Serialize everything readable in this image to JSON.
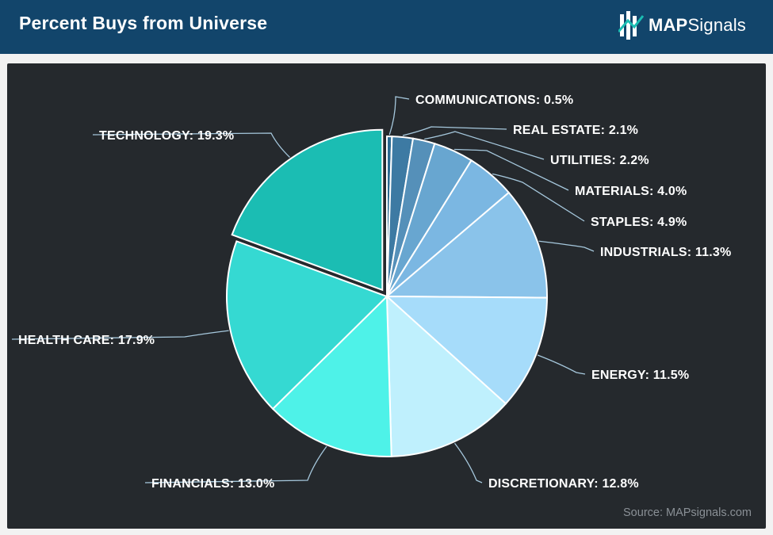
{
  "header": {
    "title": "Percent Buys from Universe",
    "logo_text_bold": "MAP",
    "logo_text_regular": "Signals"
  },
  "colors": {
    "header_bg": "#12456b",
    "panel_bg": "#25292d",
    "leader_line": "#a6c8dd"
  },
  "chart_data": {
    "type": "pie",
    "title": "Percent Buys from Universe",
    "exploded": "TECHNOLOGY",
    "slices": [
      {
        "label": "COMMUNICATIONS: 0.5%",
        "name": "COMMUNICATIONS",
        "value": 0.5,
        "color": "#2a6a92"
      },
      {
        "label": "REAL ESTATE: 2.1%",
        "name": "REAL ESTATE",
        "value": 2.1,
        "color": "#3d7aa3"
      },
      {
        "label": "UTILITIES: 2.2%",
        "name": "UTILITIES",
        "value": 2.2,
        "color": "#5590b9"
      },
      {
        "label": "MATERIALS: 4.0%",
        "name": "MATERIALS",
        "value": 4.0,
        "color": "#68a6d0"
      },
      {
        "label": "STAPLES: 4.9%",
        "name": "STAPLES",
        "value": 4.9,
        "color": "#7bb7e2"
      },
      {
        "label": "INDUSTRIALS: 11.3%",
        "name": "INDUSTRIALS",
        "value": 11.3,
        "color": "#8ac3ea"
      },
      {
        "label": "ENERGY: 11.5%",
        "name": "ENERGY",
        "value": 11.5,
        "color": "#a6dcfa"
      },
      {
        "label": "DISCRETIONARY: 12.8%",
        "name": "DISCRETIONARY",
        "value": 12.8,
        "color": "#bff0fd"
      },
      {
        "label": "FINANCIALS: 13.0%",
        "name": "FINANCIALS",
        "value": 13.0,
        "color": "#4ef2e8"
      },
      {
        "label": "HEALTH CARE: 17.9%",
        "name": "HEALTH CARE",
        "value": 17.9,
        "color": "#35d9d2"
      },
      {
        "label": "TECHNOLOGY: 19.3%",
        "name": "TECHNOLOGY",
        "value": 19.3,
        "color": "#1bbdb3"
      }
    ]
  },
  "footer": {
    "source": "Source: MAPsignals.com"
  }
}
